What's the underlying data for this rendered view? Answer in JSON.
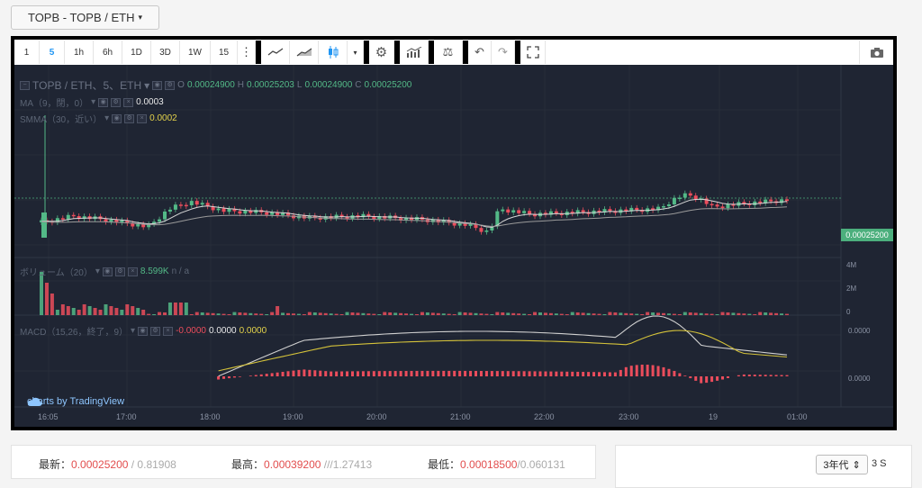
{
  "pair_selector": {
    "label": "TOPB - TOPB / ETH",
    "caret": "▾"
  },
  "toolbar": {
    "intervals": [
      "1",
      "5",
      "1h",
      "6h",
      "1D",
      "3D",
      "1W",
      "15"
    ],
    "active_interval": "5",
    "more": "⋮",
    "dropdown_caret": "▾",
    "icons": {
      "line": "line-chart-icon",
      "area": "area-chart-icon",
      "candles": "candlestick-icon",
      "settings": "gear-icon",
      "indicators": "indicators-icon",
      "compare": "scale-icon",
      "undo": "undo-icon",
      "redo": "redo-icon",
      "fullscreen": "fullscreen-icon",
      "snapshot": "camera-icon"
    }
  },
  "chart": {
    "main_legend": {
      "symbol": "TOPB / ETH、5、ETH",
      "caret": "▾",
      "o_label": "O",
      "o": "0.00024900",
      "h_label": "H",
      "h": "0.00025203",
      "l_label": "L",
      "l": "0.00024900",
      "c_label": "C",
      "c": "0.00025200"
    },
    "ma_legend": {
      "label": "MA（9，閉，0）",
      "caret": "▾",
      "value": "0.0003"
    },
    "smma_legend": {
      "label": "SMMA（30，近い）",
      "caret": "▾",
      "value": "0.0002"
    },
    "volume_legend": {
      "label": "ボリューム（20）",
      "caret": "▾",
      "value": "8.599K",
      "extra": "n / a"
    },
    "macd_legend": {
      "label": "MACD（15,26，終了，9）",
      "caret": "▾",
      "hist": "-0.0000",
      "macd": "0.0000",
      "signal": "0.0000"
    },
    "last_price_tag": "0.00025200",
    "volume_axis": [
      "4M",
      "2M",
      "0"
    ],
    "macd_axis": [
      "0.0000",
      "0.0000"
    ],
    "time_axis": [
      "16:05",
      "17:00",
      "18:00",
      "19:00",
      "20:00",
      "21:00",
      "22:00",
      "23:00",
      "19",
      "01:00"
    ],
    "watermark": "charts by TradingView",
    "colors": {
      "up": "#53b987",
      "down": "#eb4d5c",
      "bg": "#1f2533",
      "ma": "#e8e8e8",
      "smma": "#c8b88a",
      "signal": "#e3d24b"
    }
  },
  "chart_data": {
    "type": "candlestick",
    "pair": "TOPB / ETH",
    "interval": "5",
    "last": {
      "open": 0.000249,
      "high": 0.00025203,
      "low": 0.000249,
      "close": 0.000252
    },
    "indicators": [
      "MA 9",
      "SMMA 30",
      "Volume 20",
      "MACD 15,26,9"
    ]
  },
  "stats": {
    "latest_label": "最新：",
    "latest_value": "0.00025200",
    "latest_sub": "/ 0.81908",
    "high_label": "最高：",
    "high_value": "0.00039200",
    "high_sub": "///1.27413",
    "low_label": "最低：",
    "low_value": "0.00018500",
    "low_sub": "/0.060131"
  },
  "period_select": {
    "value": "3年代",
    "arrows": "⇕",
    "suffix": "3 S"
  }
}
